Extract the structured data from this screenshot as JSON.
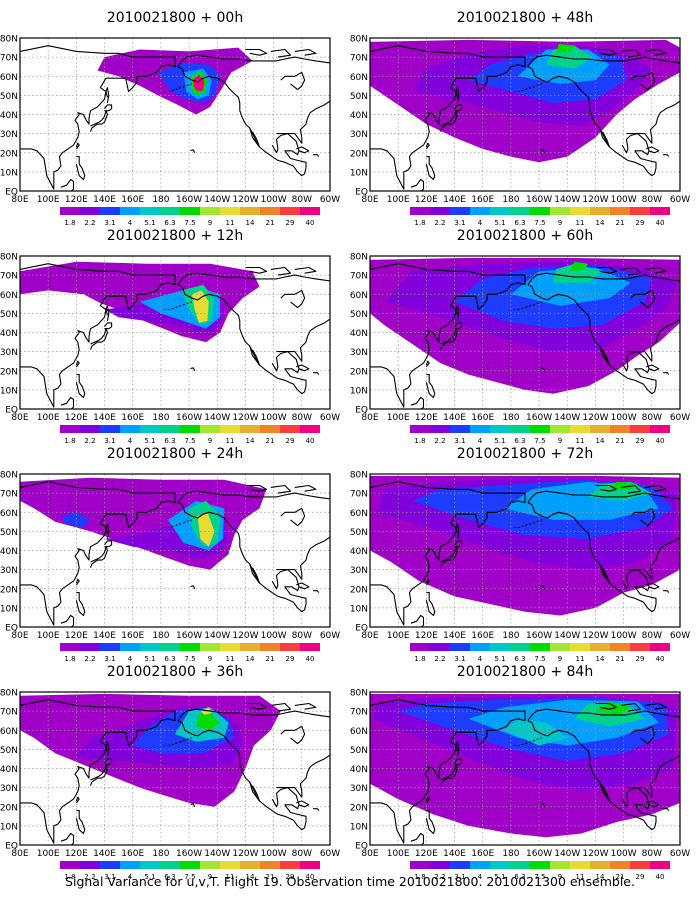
{
  "figure": {
    "caption": "Signal Variance for u,v,T. Flight 19. Observation time 2010021800. 2010021300 ensemble."
  },
  "colors": {
    "background": "#ffffff",
    "ocean_blank": "#ffffff",
    "coast": "#000000",
    "grid": "#9a9a9a"
  },
  "map": {
    "lat_labels": [
      "80N",
      "70N",
      "60N",
      "50N",
      "40N",
      "30N",
      "20N",
      "10N",
      "EQ"
    ],
    "lon_labels": [
      "80E",
      "100E",
      "120E",
      "140E",
      "160E",
      "180",
      "160W",
      "140W",
      "120W",
      "100W",
      "80W",
      "60W"
    ]
  },
  "colorbar": {
    "levels": [
      "1.8",
      "2.2",
      "3.1",
      "4",
      "5.1",
      "6.3",
      "7.5",
      "9",
      "11",
      "14",
      "21",
      "29",
      "40"
    ],
    "colors": [
      "#a000c8",
      "#8200dc",
      "#1e3cff",
      "#00a0ff",
      "#00c8c8",
      "#00d28c",
      "#00dc00",
      "#a0e632",
      "#e6dc32",
      "#e6af2d",
      "#f08228",
      "#fa3c3c",
      "#f00082"
    ]
  },
  "panels": [
    {
      "title": "2010021800 + 00h",
      "forecast_hour": 0
    },
    {
      "title": "2010021800 + 12h",
      "forecast_hour": 12
    },
    {
      "title": "2010021800 + 24h",
      "forecast_hour": 24
    },
    {
      "title": "2010021800 + 36h",
      "forecast_hour": 36
    },
    {
      "title": "2010021800 + 48h",
      "forecast_hour": 48
    },
    {
      "title": "2010021800 + 60h",
      "forecast_hour": 60
    },
    {
      "title": "2010021800 + 72h",
      "forecast_hour": 72
    },
    {
      "title": "2010021800 + 84h",
      "forecast_hour": 84
    }
  ]
}
